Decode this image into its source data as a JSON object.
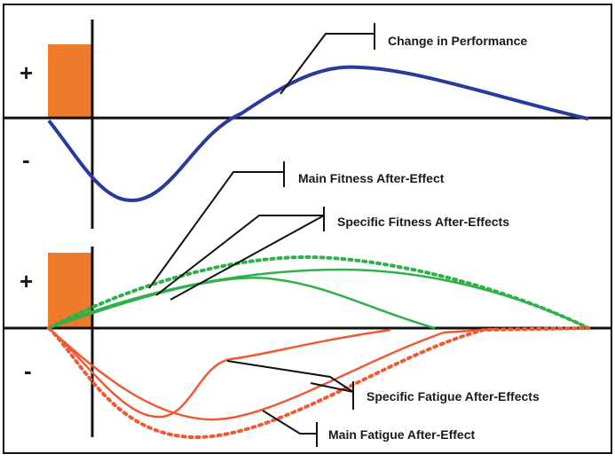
{
  "diagram": {
    "labels": {
      "change_in_performance": "Change in Performance",
      "main_fitness": "Main Fitness After-Effect",
      "specific_fitness": "Specific Fitness After-Effects",
      "specific_fatigue": "Specific Fatigue After-Effects",
      "main_fatigue": "Main Fatigue After-Effect"
    },
    "signs": {
      "top_plus": "+",
      "top_minus": "-",
      "bottom_plus": "+",
      "bottom_minus": "-"
    },
    "colors": {
      "frame": "#111111",
      "axis": "#111111",
      "performance": "#2a3a9c",
      "fitness": "#2fb14a",
      "fatigue": "#f05a32",
      "stimulus_bar": "#f07a2c",
      "leader": "#111111"
    }
  }
}
